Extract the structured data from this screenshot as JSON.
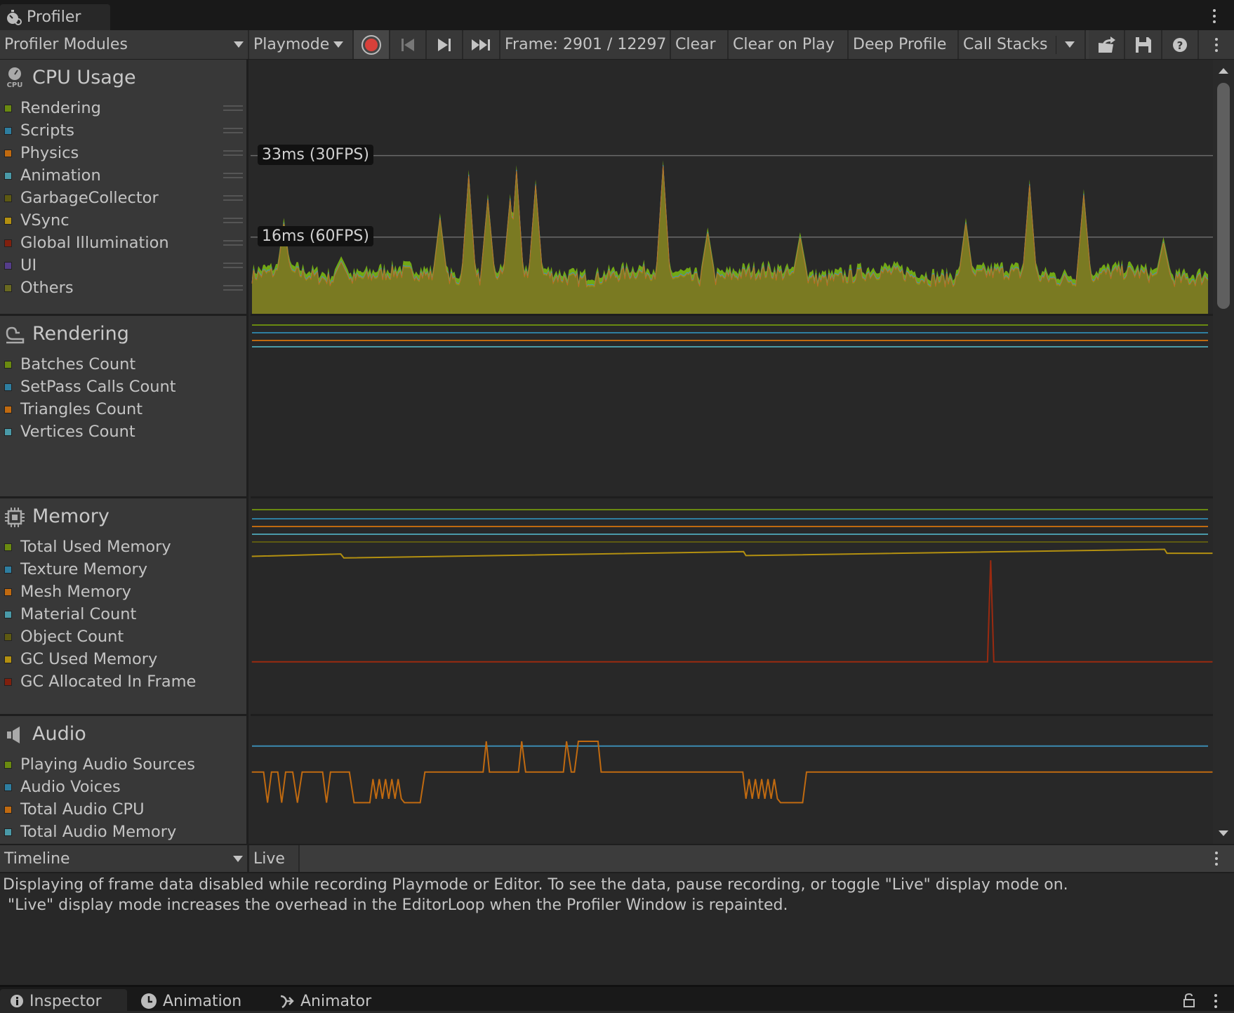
{
  "window": {
    "tab_title": "Profiler",
    "icon": "stopwatch-icon"
  },
  "toolbar": {
    "modules_dropdown": "Profiler Modules",
    "target_dropdown": "Playmode",
    "frame_label": "Frame: 2901 / 12297",
    "clear": "Clear",
    "clear_on_play": "Clear on Play",
    "deep_profile": "Deep Profile",
    "call_stacks": "Call Stacks",
    "record_color": "#d8403a"
  },
  "modules": {
    "cpu": {
      "title": "CPU Usage",
      "icon": "cpu-gauge-icon",
      "items": [
        {
          "label": "Rendering",
          "color": "#6a8a10"
        },
        {
          "label": "Scripts",
          "color": "#2e7ea0"
        },
        {
          "label": "Physics",
          "color": "#c06a10"
        },
        {
          "label": "Animation",
          "color": "#4a9aa8"
        },
        {
          "label": "GarbageCollector",
          "color": "#5e5a12"
        },
        {
          "label": "VSync",
          "color": "#b39010"
        },
        {
          "label": "Global Illumination",
          "color": "#80200e"
        },
        {
          "label": "UI",
          "color": "#553d8a"
        },
        {
          "label": "Others",
          "color": "#6a6a20"
        }
      ]
    },
    "rendering": {
      "title": "Rendering",
      "icon": "rendering-icon",
      "items": [
        {
          "label": "Batches Count",
          "color": "#6a8a10"
        },
        {
          "label": "SetPass Calls Count",
          "color": "#2e7ea0"
        },
        {
          "label": "Triangles Count",
          "color": "#c06a10"
        },
        {
          "label": "Vertices Count",
          "color": "#4a9aa8"
        }
      ]
    },
    "memory": {
      "title": "Memory",
      "icon": "memory-chip-icon",
      "items": [
        {
          "label": "Total Used Memory",
          "color": "#6a8a10"
        },
        {
          "label": "Texture Memory",
          "color": "#2e7ea0"
        },
        {
          "label": "Mesh Memory",
          "color": "#c06a10"
        },
        {
          "label": "Material Count",
          "color": "#4a9aa8"
        },
        {
          "label": "Object Count",
          "color": "#5e5a12"
        },
        {
          "label": "GC Used Memory",
          "color": "#b39010"
        },
        {
          "label": "GC Allocated In Frame",
          "color": "#80200e"
        }
      ]
    },
    "audio": {
      "title": "Audio",
      "icon": "speaker-icon",
      "items": [
        {
          "label": "Playing Audio Sources",
          "color": "#6a8a10"
        },
        {
          "label": "Audio Voices",
          "color": "#2e7ea0"
        },
        {
          "label": "Total Audio CPU",
          "color": "#c06a10"
        },
        {
          "label": "Total Audio Memory",
          "color": "#4a9aa8"
        }
      ]
    }
  },
  "chart_data": {
    "type": "area",
    "thresholds": [
      {
        "ms": 33,
        "label": "33ms (30FPS)"
      },
      {
        "ms": 16,
        "label": "16ms (60FPS)"
      }
    ],
    "ylim": [
      0,
      53
    ],
    "xlim": [
      0,
      300
    ],
    "baseline_ms": 9,
    "spikes": [
      [
        10,
        20
      ],
      [
        28,
        12
      ],
      [
        59,
        21
      ],
      [
        68,
        30
      ],
      [
        74,
        25
      ],
      [
        81,
        25
      ],
      [
        83,
        31
      ],
      [
        89,
        28
      ],
      [
        129,
        32
      ],
      [
        143,
        18
      ],
      [
        172,
        17
      ],
      [
        224,
        20
      ],
      [
        244,
        28
      ],
      [
        261,
        26
      ],
      [
        286,
        16
      ]
    ]
  },
  "details": {
    "view_dropdown": "Timeline",
    "live_button": "Live",
    "message": "Displaying of frame data disabled while recording Playmode or Editor. To see the data, pause recording, or toggle \"Live\" display mode on.\n \"Live\" display mode increases the overhead in the EditorLoop when the Profiler Window is repainted."
  },
  "bottom_tabs": [
    {
      "label": "Inspector",
      "icon": "info-icon"
    },
    {
      "label": "Animation",
      "icon": "clock-icon"
    },
    {
      "label": "Animator",
      "icon": "animator-icon"
    }
  ]
}
